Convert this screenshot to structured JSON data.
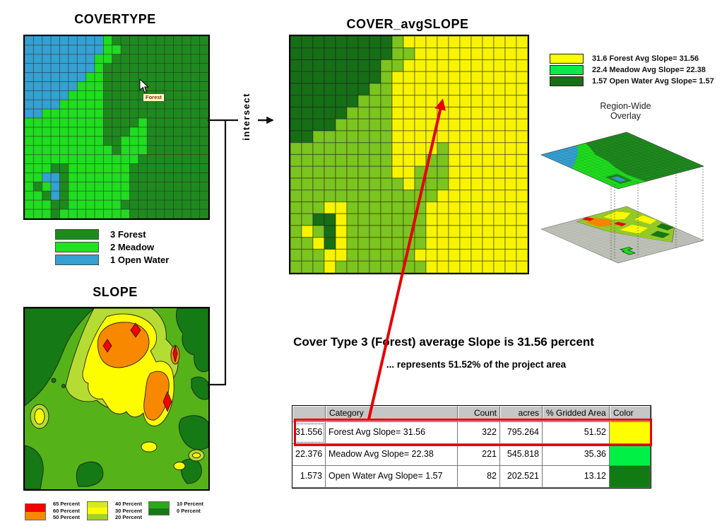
{
  "covertype": {
    "title": "COVERTYPE",
    "tooltip": "Forest",
    "palette": {
      "W": "#35a0d2",
      "M": "#1fdd1f",
      "F": "#1e8a1e"
    },
    "legend": [
      {
        "label": "3 Forest",
        "color": "#1e8a1e"
      },
      {
        "label": "2 Meadow",
        "color": "#22e122"
      },
      {
        "label": "1 Open Water",
        "color": "#35a0d2"
      }
    ],
    "grid": [
      "WWWWWWWWWMFFFFFFFFFFF",
      "WWWWWWWWWMMFFFFFFFFFF",
      "WWWWWWWWMMFFFFFFFFFFF",
      "WWWWWWWWMFFFFFFFFFFFF",
      "WWWWWWWMMFFFFFFFFFFFF",
      "WWWWWWMMMFFFFFFFFFFFF",
      "WWWWWMMMMFFFFFFFFFFFF",
      "WWWWMMMMMFFFFFFFFFFFF",
      "WWMMMMMMMFFFFFFFFFFFF",
      "MMMMMMMMMFFFFMFFFFFFF",
      "MMMMMMMMMFFFMMFFFFFFF",
      "MMMMMMMMMFFMMMFFFFFFF",
      "MMMMMMMMMMFMMMFFFFFFF",
      "MMMMMMMMMMMMMFFFFFFFF",
      "MMMFFMMMMMMMFFFFFFFFF",
      "MMWWFMMMMMMMFFFFFFFFF",
      "MFMWFMMMMMMMFFFFFFFFF",
      "MMFWFMMMMMMMFFFFFFFFF",
      "MMMFFMMMMMMFFFFFFFFFF",
      "MMMFMMMMMMMMFFFFFFFFF"
    ]
  },
  "slope": {
    "title": "SLOPE",
    "colors": {
      "base": "#55b319",
      "dark": "#157a15",
      "light": "#b5dc32",
      "yellow": "#fdfd00",
      "orange": "#f78800",
      "red": "#f40000"
    },
    "legend_groups": [
      {
        "colors": [
          "#f40000",
          "#f78800"
        ],
        "labels": [
          "65 Percent",
          "60 Percent",
          "50 Percent"
        ]
      },
      {
        "colors": [
          "#d8e822",
          "#fdfd00",
          "#a0d228"
        ],
        "labels": [
          "40 Percent",
          "30 Percent",
          "20 Percent"
        ]
      },
      {
        "colors": [
          "#2ca81c",
          "#157a15"
        ],
        "labels": [
          "10 Percent",
          "0 Percent"
        ]
      }
    ]
  },
  "intersect": {
    "label": "intersect"
  },
  "cover_avgslope": {
    "title": "COVER_avgSLOPE",
    "palette": {
      "W": "#166e16",
      "M": "#7cc41f",
      "F": "#f8f400"
    },
    "legend": [
      {
        "label": "31.6 Forest Avg Slope= 31.56",
        "color": "#ffff00"
      },
      {
        "label": "22.4 Meadow Avg Slope= 22.38",
        "color": "#00ee44"
      },
      {
        "label": "1.57 Open Water Avg Slope= 1.57",
        "color": "#167016"
      }
    ]
  },
  "overlay3d": {
    "title_line1": "Region-Wide",
    "title_line2": "Overlay",
    "gray": "#bdc1b8",
    "zone": "#96cc28"
  },
  "annotation": {
    "main": "Cover Type 3 (Forest) average Slope is 31.56 percent",
    "sub": "... represents 51.52% of the project area"
  },
  "table": {
    "headers": [
      "",
      "Category",
      "Count",
      "acres",
      "% Gridded Area",
      "Color"
    ],
    "rows": [
      {
        "cells": [
          "31.556",
          "Forest Avg Slope= 31.56",
          "322",
          "795.264",
          "51.52"
        ],
        "color": "#ffff00",
        "highlighted": true
      },
      {
        "cells": [
          "22.376",
          "Meadow Avg Slope= 22.38",
          "221",
          "545.818",
          "35.36"
        ],
        "color": "#00f046",
        "highlighted": false
      },
      {
        "cells": [
          "1.573",
          "Open Water Avg Slope= 1.57",
          "82",
          "202.521",
          "13.12"
        ],
        "color": "#127a12",
        "highlighted": false
      }
    ]
  }
}
